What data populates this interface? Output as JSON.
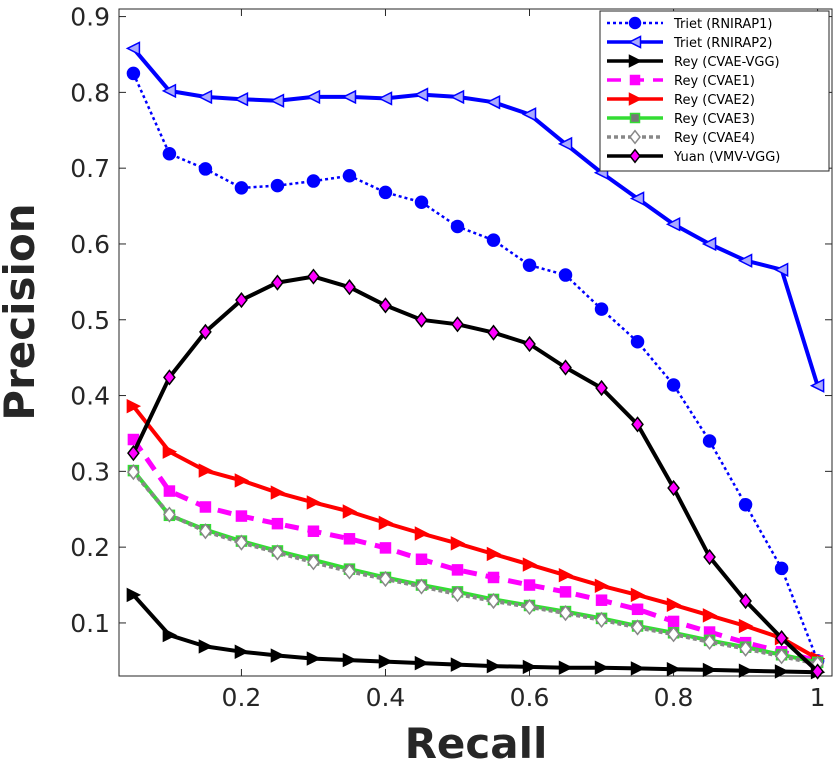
{
  "chart_data": {
    "type": "line",
    "title": "",
    "xlabel": "Recall",
    "ylabel": "Precision",
    "xlim": [
      0.03,
      1.02
    ],
    "ylim": [
      0.03,
      0.91
    ],
    "xticks": [
      0.2,
      0.4,
      0.6,
      0.8,
      1
    ],
    "xtick_labels": [
      "0.2",
      "0.4",
      "0.6",
      "0.8",
      "1"
    ],
    "yticks": [
      0.1,
      0.2,
      0.3,
      0.4,
      0.5,
      0.6,
      0.7,
      0.8,
      0.9
    ],
    "ytick_labels": [
      "0.1",
      "0.2",
      "0.3",
      "0.4",
      "0.5",
      "0.6",
      "0.7",
      "0.8",
      "0.9"
    ],
    "grid": false,
    "legend_position": "top-right",
    "x": [
      0.05,
      0.1,
      0.15,
      0.2,
      0.25,
      0.3,
      0.35,
      0.4,
      0.45,
      0.5,
      0.55,
      0.6,
      0.65,
      0.7,
      0.75,
      0.8,
      0.85,
      0.9,
      0.95,
      1.0
    ],
    "series": [
      {
        "name": "Triet (RNIRAP1)",
        "color": "#0000ff",
        "dash": "3,3",
        "width": 2.5,
        "marker": "circle",
        "markerFill": "#0000ff",
        "markerStroke": "#0000ff",
        "values": [
          0.825,
          0.719,
          0.699,
          0.674,
          0.677,
          0.683,
          0.69,
          0.668,
          0.655,
          0.623,
          0.605,
          0.572,
          0.559,
          0.514,
          0.471,
          0.414,
          0.34,
          0.256,
          0.172,
          0.05
        ]
      },
      {
        "name": "Triet (RNIRAP2)",
        "color": "#0000ff",
        "dash": "",
        "width": 4,
        "marker": "tri-left",
        "markerFill": "#aaaaff",
        "markerStroke": "#0000ff",
        "values": [
          0.858,
          0.802,
          0.794,
          0.791,
          0.789,
          0.794,
          0.794,
          0.792,
          0.797,
          0.794,
          0.787,
          0.771,
          0.732,
          0.694,
          0.66,
          0.626,
          0.6,
          0.578,
          0.566,
          0.413
        ]
      },
      {
        "name": "Rey (CVAE-VGG)",
        "color": "#000000",
        "dash": "",
        "width": 4,
        "marker": "tri-right",
        "markerFill": "#000000",
        "markerStroke": "#000000",
        "values": [
          0.137,
          0.084,
          0.069,
          0.062,
          0.057,
          0.053,
          0.051,
          0.049,
          0.047,
          0.045,
          0.043,
          0.042,
          0.041,
          0.041,
          0.04,
          0.039,
          0.038,
          0.037,
          0.036,
          0.035
        ]
      },
      {
        "name": "Rey (CVAE1)",
        "color": "#ff00ff",
        "dash": "14,9",
        "width": 5,
        "marker": "square",
        "markerFill": "#ff00ff",
        "markerStroke": "#ff00ff",
        "values": [
          0.342,
          0.274,
          0.253,
          0.241,
          0.231,
          0.221,
          0.211,
          0.199,
          0.184,
          0.17,
          0.16,
          0.15,
          0.141,
          0.13,
          0.118,
          0.102,
          0.088,
          0.074,
          0.062,
          0.05
        ]
      },
      {
        "name": "Rey (CVAE2)",
        "color": "#ff0000",
        "dash": "",
        "width": 4,
        "marker": "tri-right",
        "markerFill": "#ff0000",
        "markerStroke": "#ff0000",
        "values": [
          0.386,
          0.326,
          0.301,
          0.288,
          0.272,
          0.259,
          0.247,
          0.232,
          0.218,
          0.205,
          0.191,
          0.177,
          0.163,
          0.149,
          0.137,
          0.124,
          0.11,
          0.096,
          0.08,
          0.053
        ]
      },
      {
        "name": "Rey (CVAE3)",
        "color": "#33dd33",
        "dash": "",
        "width": 4,
        "marker": "square",
        "markerFill": "#777777",
        "markerStroke": "#33dd33",
        "values": [
          0.301,
          0.242,
          0.223,
          0.208,
          0.195,
          0.183,
          0.171,
          0.16,
          0.15,
          0.141,
          0.131,
          0.123,
          0.115,
          0.106,
          0.096,
          0.087,
          0.077,
          0.068,
          0.058,
          0.048
        ]
      },
      {
        "name": "Rey (CVAE4)",
        "color": "#888888",
        "dash": "4,3",
        "width": 4,
        "marker": "diamond",
        "markerFill": "#ffffff",
        "markerStroke": "#888888",
        "values": [
          0.299,
          0.243,
          0.221,
          0.206,
          0.193,
          0.18,
          0.168,
          0.158,
          0.148,
          0.138,
          0.129,
          0.121,
          0.113,
          0.104,
          0.094,
          0.085,
          0.075,
          0.066,
          0.056,
          0.046
        ]
      },
      {
        "name": "Yuan (VMV-VGG)",
        "color": "#000000",
        "dash": "",
        "width": 4,
        "marker": "diamond",
        "markerFill": "#ff00ff",
        "markerStroke": "#000000",
        "values": [
          0.324,
          0.424,
          0.484,
          0.526,
          0.549,
          0.557,
          0.543,
          0.519,
          0.5,
          0.494,
          0.483,
          0.468,
          0.437,
          0.41,
          0.362,
          0.278,
          0.187,
          0.129,
          0.08,
          0.036
        ]
      }
    ]
  }
}
